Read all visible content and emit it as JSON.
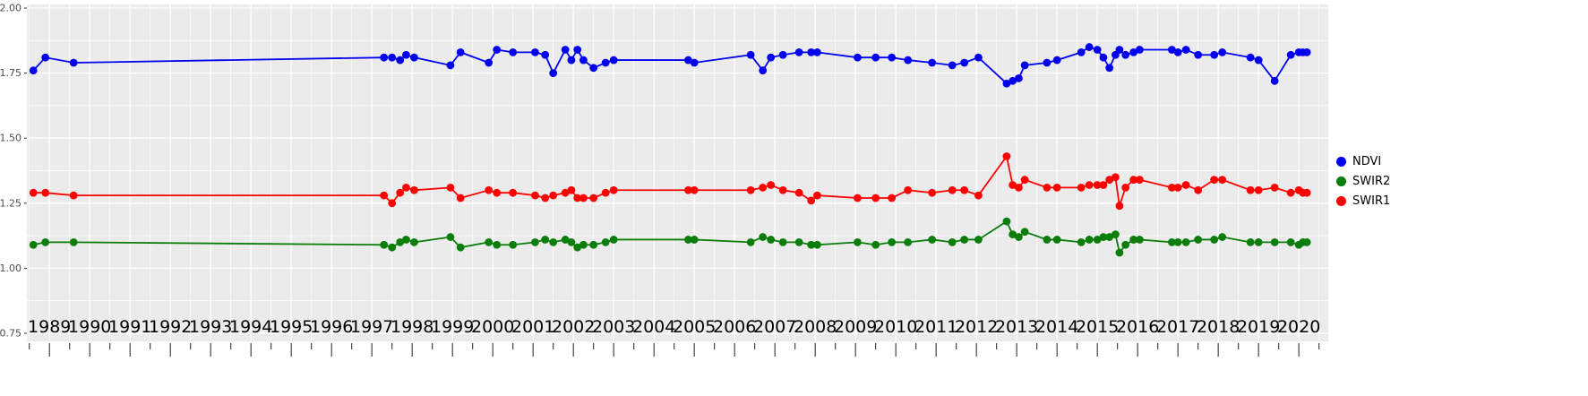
{
  "chart_data": {
    "type": "line",
    "title": "",
    "xlabel": "",
    "ylabel": "",
    "ylim": [
      0.75,
      2.0
    ],
    "xlim": [
      1988.44,
      2020.73
    ],
    "grid": "white major and minor gridlines on grey panel",
    "legend_position": "right",
    "y_ticks": [
      2.0,
      1.75,
      1.5,
      1.25,
      1.0,
      0.75
    ],
    "y_tick_labels": [
      "2.00",
      "1.75",
      "1.50",
      "1.25",
      "1.00",
      "0.75"
    ],
    "x_tick_labels": [
      "1989",
      "1990",
      "1991",
      "1992",
      "1993",
      "1994",
      "1995",
      "1996",
      "1997",
      "1998",
      "1999",
      "2000",
      "2001",
      "2002",
      "2003",
      "2004",
      "2005",
      "2006",
      "2007",
      "2008",
      "2009",
      "2010",
      "2011",
      "2012",
      "2013",
      "2014",
      "2015",
      "2016",
      "2017",
      "2018",
      "2019",
      "2020"
    ],
    "x": [
      1988.6,
      1988.9,
      1989.6,
      1997.3,
      1997.5,
      1997.7,
      1997.85,
      1998.05,
      1998.95,
      1999.2,
      1999.9,
      2000.1,
      2000.5,
      2001.05,
      2001.3,
      2001.5,
      2001.8,
      2001.95,
      2002.1,
      2002.25,
      2002.5,
      2002.8,
      2003.0,
      2004.85,
      2005.0,
      2006.4,
      2006.7,
      2006.9,
      2007.2,
      2007.6,
      2007.9,
      2008.05,
      2009.05,
      2009.5,
      2009.9,
      2010.3,
      2010.9,
      2011.4,
      2011.7,
      2012.05,
      2012.75,
      2012.9,
      2013.05,
      2013.2,
      2013.75,
      2014.0,
      2014.6,
      2014.8,
      2015.0,
      2015.15,
      2015.3,
      2015.45,
      2015.55,
      2015.7,
      2015.9,
      2016.05,
      2016.85,
      2017.0,
      2017.2,
      2017.5,
      2017.9,
      2018.1,
      2018.8,
      2019.0,
      2019.4,
      2019.8,
      2020.0,
      2020.1,
      2020.2
    ],
    "series": [
      {
        "name": "NDVI",
        "color": "#0000EE",
        "values": [
          1.76,
          1.81,
          1.79,
          1.81,
          1.81,
          1.8,
          1.82,
          1.81,
          1.78,
          1.83,
          1.79,
          1.84,
          1.83,
          1.83,
          1.82,
          1.75,
          1.84,
          1.8,
          1.84,
          1.8,
          1.77,
          1.79,
          1.8,
          1.8,
          1.79,
          1.82,
          1.76,
          1.81,
          1.82,
          1.83,
          1.83,
          1.83,
          1.81,
          1.81,
          1.81,
          1.8,
          1.79,
          1.78,
          1.79,
          1.81,
          1.71,
          1.72,
          1.73,
          1.78,
          1.79,
          1.8,
          1.83,
          1.85,
          1.84,
          1.81,
          1.77,
          1.82,
          1.84,
          1.82,
          1.83,
          1.84,
          1.84,
          1.83,
          1.84,
          1.82,
          1.82,
          1.83,
          1.81,
          1.8,
          1.72,
          1.82,
          1.83,
          1.83,
          1.83
        ]
      },
      {
        "name": "SWIR2",
        "color": "#0B7D0B",
        "values": [
          1.09,
          1.1,
          1.1,
          1.09,
          1.08,
          1.1,
          1.11,
          1.1,
          1.12,
          1.08,
          1.1,
          1.09,
          1.09,
          1.1,
          1.11,
          1.1,
          1.11,
          1.1,
          1.08,
          1.09,
          1.09,
          1.1,
          1.11,
          1.11,
          1.11,
          1.1,
          1.12,
          1.11,
          1.1,
          1.1,
          1.09,
          1.09,
          1.1,
          1.09,
          1.1,
          1.1,
          1.11,
          1.1,
          1.11,
          1.11,
          1.18,
          1.13,
          1.12,
          1.14,
          1.11,
          1.11,
          1.1,
          1.11,
          1.11,
          1.12,
          1.12,
          1.13,
          1.06,
          1.09,
          1.11,
          1.11,
          1.1,
          1.1,
          1.1,
          1.11,
          1.11,
          1.12,
          1.1,
          1.1,
          1.1,
          1.1,
          1.09,
          1.1,
          1.1
        ]
      },
      {
        "name": "SWIR1",
        "color": "#FF0000",
        "values": [
          1.29,
          1.29,
          1.28,
          1.28,
          1.25,
          1.29,
          1.31,
          1.3,
          1.31,
          1.27,
          1.3,
          1.29,
          1.29,
          1.28,
          1.27,
          1.28,
          1.29,
          1.3,
          1.27,
          1.27,
          1.27,
          1.29,
          1.3,
          1.3,
          1.3,
          1.3,
          1.31,
          1.32,
          1.3,
          1.29,
          1.26,
          1.28,
          1.27,
          1.27,
          1.27,
          1.3,
          1.29,
          1.3,
          1.3,
          1.28,
          1.43,
          1.32,
          1.31,
          1.34,
          1.31,
          1.31,
          1.31,
          1.32,
          1.32,
          1.32,
          1.34,
          1.35,
          1.24,
          1.31,
          1.34,
          1.34,
          1.31,
          1.31,
          1.32,
          1.3,
          1.34,
          1.34,
          1.3,
          1.3,
          1.31,
          1.29,
          1.3,
          1.29,
          1.29
        ]
      }
    ],
    "style": {
      "panel_bg": "#EBEBEB",
      "grid_color": "#FFFFFF",
      "axis_text_y": "#4D4D4D",
      "axis_text_x": "#000000",
      "tick_color": "#333333",
      "figure_bg": "#FFFFFF"
    }
  }
}
